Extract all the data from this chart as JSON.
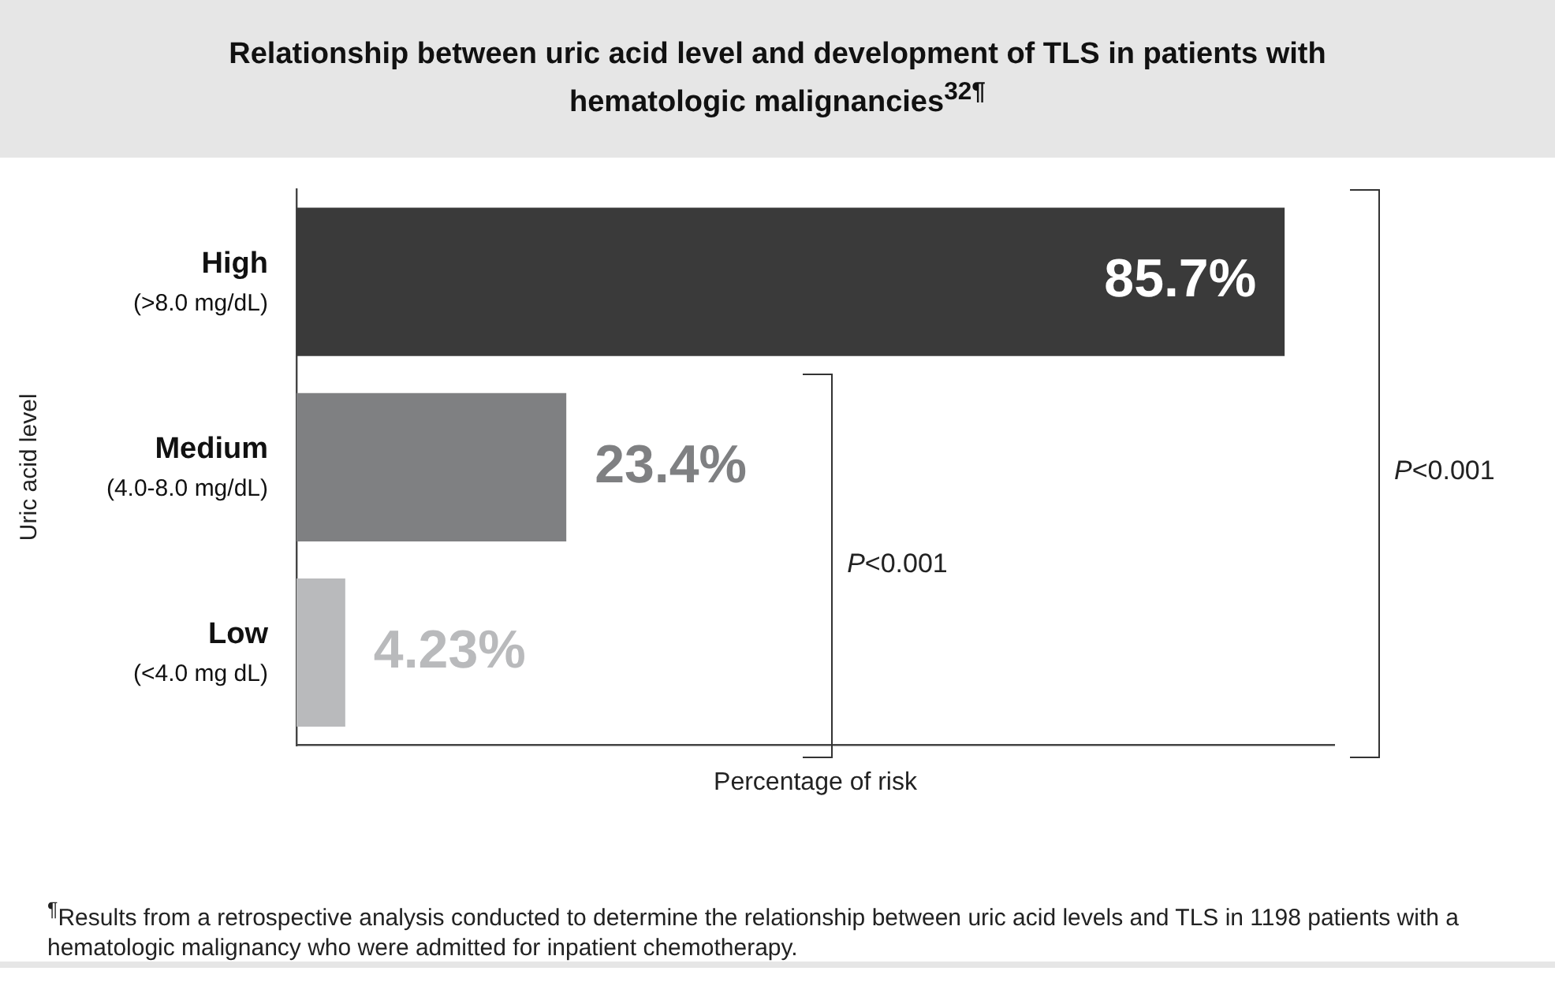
{
  "chart_data": {
    "type": "bar",
    "orientation": "horizontal",
    "title": "Relationship between uric acid level and development of TLS in patients with hematologic malignancies$^{32¶}$",
    "categories": [
      "High\n(>8.0 mg/dL)",
      "Medium\n(4.0-8.0 mg/dL)",
      "Low\n(<4.0 mg dL)"
    ],
    "values": [
      85.7,
      23.4,
      4.23
    ],
    "colors": [
      "#3a3a3a",
      "#7f8082",
      "#b9babc"
    ],
    "value_labels": [
      "85.7%",
      "23.4%",
      "4.23%"
    ],
    "xlabel": "Percentage of risk",
    "ylabel": "Uric acid level",
    "tick_labels": "y",
    "grid": false,
    "legend": false,
    "annotations": [
      "P<0.001",
      "P<0.001",
      "$^{¶}$Results from a retrospective analysis conducted to determine the relationship between uric acid levels and TLS in 1198 patients with a hematologic malignancy who were admitted for inpatient chemotherapy."
    ]
  }
}
